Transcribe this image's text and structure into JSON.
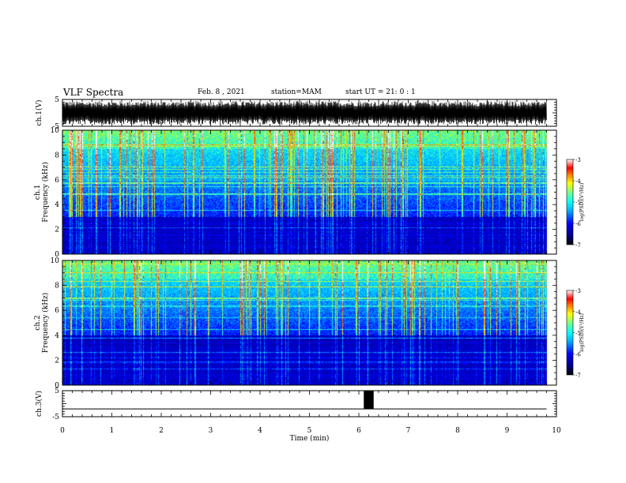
{
  "header": {
    "title": "VLF Spectra",
    "date": "Feb. 8 , 2021",
    "station": "station=MAM",
    "start": "start UT = 21: 0 : 1"
  },
  "colors": {
    "spectrogram_cmap": [
      "#00007f",
      "#0000ff",
      "#00b0ff",
      "#00ffff",
      "#7fff7f",
      "#ffff00",
      "#ff7f00",
      "#ff0000",
      "#ffffff"
    ],
    "waveform": "#000000"
  },
  "chart_data": [
    {
      "type": "line",
      "id": "ch1-waveform",
      "ylabel": "ch.1(V)",
      "ylim": [
        -5,
        5
      ],
      "yticks": [
        "5",
        "-5"
      ],
      "xlim": [
        0,
        10
      ],
      "waveform": "dense oscillation, bursts spanning roughly -5 to 5 V over 0 to 9.8 min"
    },
    {
      "type": "heatmap",
      "id": "ch1-spectrogram",
      "ylabel": "ch.1 Frequency (kHz)",
      "ylim": [
        0,
        10
      ],
      "yticks": [
        "0",
        "2",
        "4",
        "6",
        "8",
        "10"
      ],
      "xlim": [
        0,
        10
      ],
      "data_end_min": 9.8,
      "colorbar": {
        "label": "log(PSD)(V²/Hz)",
        "range": [
          -7,
          -3
        ],
        "ticks": [
          "-3",
          "-4",
          "-5",
          "-6",
          "-7"
        ]
      },
      "background_floor_khz": 3.0
    },
    {
      "type": "heatmap",
      "id": "ch2-spectrogram",
      "ylabel": "ch.2 Frequency (kHz)",
      "ylim": [
        0,
        10
      ],
      "yticks": [
        "0",
        "2",
        "4",
        "6",
        "8",
        "10"
      ],
      "xlim": [
        0,
        10
      ],
      "data_end_min": 9.8,
      "colorbar": {
        "label": "log(PSD)(V²/Hz)",
        "range": [
          -7,
          -3
        ],
        "ticks": [
          "-3",
          "-4",
          "-5",
          "-6",
          "-7"
        ]
      },
      "background_floor_khz": 4.0
    },
    {
      "type": "line",
      "id": "ch3-signal",
      "ylabel": "ch.3(V)",
      "ylim": [
        -5,
        5
      ],
      "yticks": [
        "5",
        "-5"
      ],
      "xlim": [
        0,
        10
      ],
      "baseline_v": -2,
      "pulse": {
        "start_min": 6.1,
        "end_min": 6.3,
        "low_v": -2,
        "high_v": 5
      }
    }
  ],
  "xaxis": {
    "label": "Time (min)",
    "ticks": [
      "0",
      "1",
      "2",
      "3",
      "4",
      "5",
      "6",
      "7",
      "8",
      "9",
      "10"
    ]
  }
}
